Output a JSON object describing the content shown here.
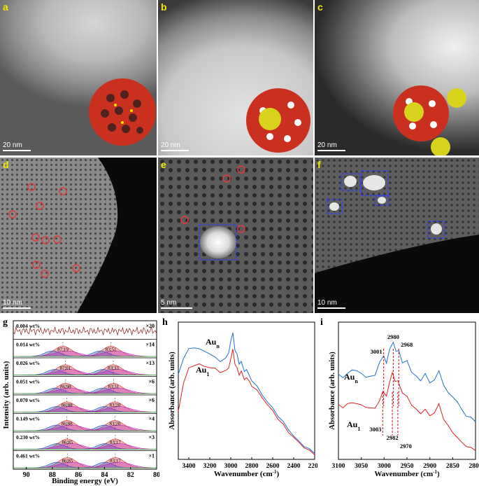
{
  "micrographs": {
    "a": {
      "label": "a",
      "scale": "20 nm"
    },
    "b": {
      "label": "b",
      "scale": "20 nm"
    },
    "c": {
      "label": "c",
      "scale": "20 nm"
    },
    "d": {
      "label": "d",
      "scale": "10 nm"
    },
    "e": {
      "label": "e",
      "scale": "5 nm"
    },
    "f": {
      "label": "f",
      "scale": "10 nm"
    }
  },
  "colors": {
    "red_circle": "#e23b3b",
    "blue_box": "#2f3cff",
    "label_yellow": "#f2e900",
    "au1_line": "#e02020",
    "aun_line": "#1f6fd6"
  },
  "chart_data": [
    {
      "panel": "g",
      "type": "line",
      "xlabel": "Binding energy (eV)",
      "ylabel": "Intensity (arb. units)",
      "xlim": [
        91,
        80
      ],
      "xticks": [
        "90",
        "88",
        "86",
        "84",
        "82",
        "80"
      ],
      "stacks": [
        {
          "loading": "0.004 wt%",
          "mult": "×20",
          "peak1": "",
          "peak2": ""
        },
        {
          "loading": "0.014 wt%",
          "mult": "×14",
          "peak1": "87.19",
          "peak2": "83.51"
        },
        {
          "loading": "0.026 wt%",
          "mult": "×13",
          "peak1": "87.01",
          "peak2": "83.33"
        },
        {
          "loading": "0.051 wt%",
          "mult": "×6",
          "peak1": "86.98",
          "peak2": "83.31"
        },
        {
          "loading": "0.070 wt%",
          "mult": "×6",
          "peak1": "86.88",
          "peak2": "83.20"
        },
        {
          "loading": "0.149 wt%",
          "mult": "×4",
          "peak1": "86.88",
          "peak2": "83.20"
        },
        {
          "loading": "0.230 wt%",
          "mult": "×3",
          "peak1": "86.85",
          "peak2": "83.17"
        },
        {
          "loading": "0.461 wt%",
          "mult": "×1",
          "peak1": "86.85",
          "peak2": "83.17"
        }
      ]
    },
    {
      "panel": "h",
      "type": "line",
      "xlabel": "Wavenumber (cm",
      "xlabel_sup": "-1",
      "xlabel_end": ")",
      "ylabel": "Absorbance (arb. units)",
      "xlim": [
        3500,
        2200
      ],
      "xticks": [
        "3400",
        "3200",
        "3000",
        "2800",
        "2600",
        "2400",
        "2200"
      ],
      "series": [
        {
          "name": "Au",
          "sub": "n",
          "color": "#1f6fd6",
          "x": [
            3500,
            3450,
            3400,
            3350,
            3300,
            3250,
            3200,
            3150,
            3100,
            3050,
            3020,
            3000,
            2980,
            2960,
            2940,
            2920,
            2900,
            2870,
            2850,
            2820,
            2800,
            2750,
            2700,
            2650,
            2600,
            2550,
            2500,
            2450,
            2400,
            2350,
            2300,
            2250,
            2200
          ],
          "y": [
            0.62,
            0.74,
            0.8,
            0.82,
            0.8,
            0.79,
            0.77,
            0.74,
            0.72,
            0.73,
            0.78,
            0.86,
            0.92,
            0.8,
            0.76,
            0.7,
            0.71,
            0.64,
            0.66,
            0.6,
            0.58,
            0.53,
            0.47,
            0.42,
            0.37,
            0.32,
            0.27,
            0.22,
            0.17,
            0.13,
            0.1,
            0.07,
            0.05
          ]
        },
        {
          "name": "Au",
          "sub": "1",
          "color": "#e02020",
          "x": [
            3500,
            3450,
            3400,
            3350,
            3300,
            3250,
            3200,
            3150,
            3100,
            3050,
            3020,
            3000,
            2980,
            2960,
            2940,
            2920,
            2900,
            2870,
            2850,
            2820,
            2800,
            2750,
            2700,
            2650,
            2600,
            2550,
            2500,
            2450,
            2400,
            2350,
            2300,
            2250,
            2200
          ],
          "y": [
            0.35,
            0.56,
            0.66,
            0.69,
            0.69,
            0.68,
            0.67,
            0.66,
            0.64,
            0.64,
            0.67,
            0.73,
            0.8,
            0.7,
            0.66,
            0.62,
            0.64,
            0.58,
            0.6,
            0.56,
            0.54,
            0.5,
            0.45,
            0.4,
            0.35,
            0.3,
            0.25,
            0.2,
            0.16,
            0.12,
            0.09,
            0.06,
            0.04
          ]
        }
      ]
    },
    {
      "panel": "i",
      "type": "line",
      "xlabel": "Wavenumber (cm",
      "xlabel_sup": "-1",
      "xlabel_end": ")",
      "ylabel": "Absorbance (arb. units)",
      "xlim": [
        3100,
        2800
      ],
      "xticks": [
        "3100",
        "3050",
        "3000",
        "2950",
        "2900",
        "2850",
        "2800"
      ],
      "peaks_aun": [
        "3001",
        "2980",
        "2968"
      ],
      "peaks_au1": [
        "3003",
        "2982",
        "2970"
      ],
      "series": [
        {
          "name": "Au",
          "sub": "n",
          "color": "#1f6fd6",
          "x": [
            3100,
            3090,
            3080,
            3070,
            3060,
            3050,
            3040,
            3030,
            3020,
            3010,
            3001,
            2995,
            2988,
            2980,
            2974,
            2968,
            2960,
            2950,
            2940,
            2930,
            2920,
            2910,
            2900,
            2890,
            2880,
            2870,
            2860,
            2850,
            2840,
            2830,
            2820,
            2810,
            2800
          ],
          "y": [
            0.62,
            0.6,
            0.62,
            0.66,
            0.64,
            0.63,
            0.6,
            0.6,
            0.62,
            0.7,
            0.76,
            0.7,
            0.8,
            0.86,
            0.78,
            0.8,
            0.7,
            0.72,
            0.64,
            0.6,
            0.58,
            0.62,
            0.56,
            0.58,
            0.64,
            0.55,
            0.48,
            0.46,
            0.42,
            0.36,
            0.32,
            0.3,
            0.28
          ]
        },
        {
          "name": "Au",
          "sub": "1",
          "color": "#e02020",
          "x": [
            3100,
            3090,
            3080,
            3070,
            3060,
            3050,
            3040,
            3030,
            3020,
            3010,
            3003,
            2995,
            2988,
            2982,
            2976,
            2970,
            2960,
            2950,
            2940,
            2930,
            2920,
            2910,
            2900,
            2890,
            2880,
            2870,
            2860,
            2850,
            2840,
            2830,
            2820,
            2810,
            2800
          ],
          "y": [
            0.4,
            0.38,
            0.4,
            0.42,
            0.4,
            0.4,
            0.38,
            0.37,
            0.38,
            0.42,
            0.5,
            0.46,
            0.56,
            0.64,
            0.56,
            0.58,
            0.48,
            0.46,
            0.4,
            0.36,
            0.34,
            0.36,
            0.32,
            0.34,
            0.4,
            0.3,
            0.24,
            0.2,
            0.16,
            0.12,
            0.1,
            0.08,
            0.07
          ]
        }
      ]
    }
  ]
}
